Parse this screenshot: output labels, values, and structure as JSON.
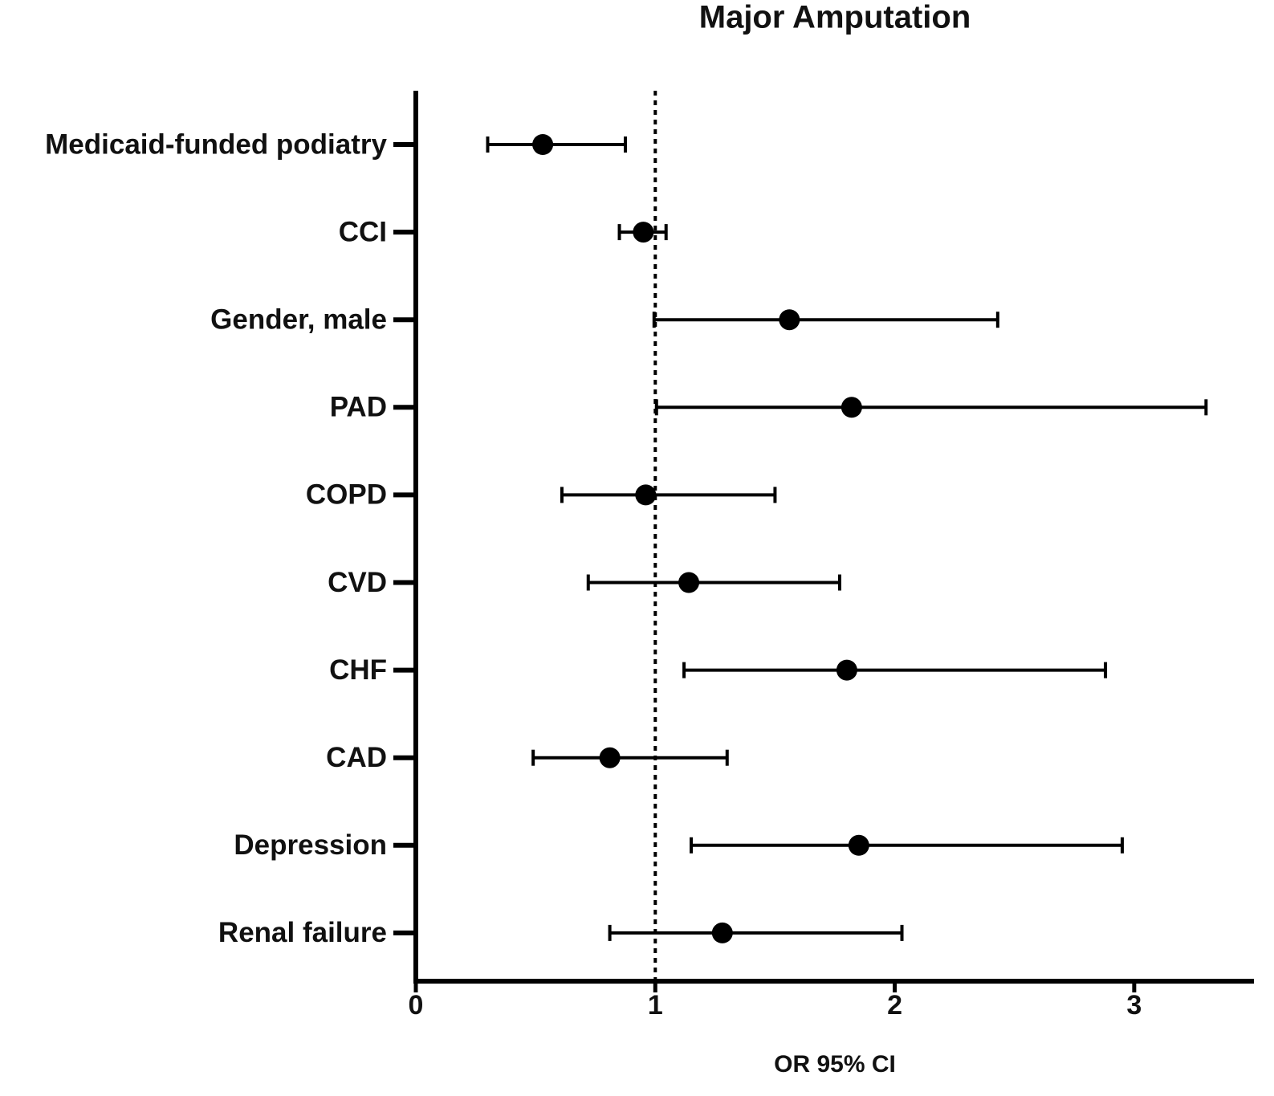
{
  "chart_data": {
    "type": "forest",
    "title": "Major Amputation",
    "x_label": "OR 95% CI",
    "categories": [
      "Medicaid-funded podiatry",
      "CCI",
      "Gender, male",
      "PAD",
      "COPD",
      "CVD",
      "CHF",
      "CAD",
      "Depression",
      "Renal failure"
    ],
    "values": [
      0.53,
      0.95,
      1.56,
      1.82,
      0.96,
      1.14,
      1.8,
      0.81,
      1.85,
      1.28
    ],
    "lower": [
      0.3,
      0.85,
      0.995,
      1.005,
      0.61,
      0.72,
      1.12,
      0.49,
      1.15,
      0.81
    ],
    "upper": [
      0.875,
      1.045,
      2.43,
      3.3,
      1.5,
      1.77,
      2.88,
      1.3,
      2.95,
      2.03
    ],
    "color": "#000000",
    "xlim": [
      0,
      3.5
    ],
    "xticks": [
      0,
      1,
      2,
      3
    ],
    "reference_line": 1
  }
}
